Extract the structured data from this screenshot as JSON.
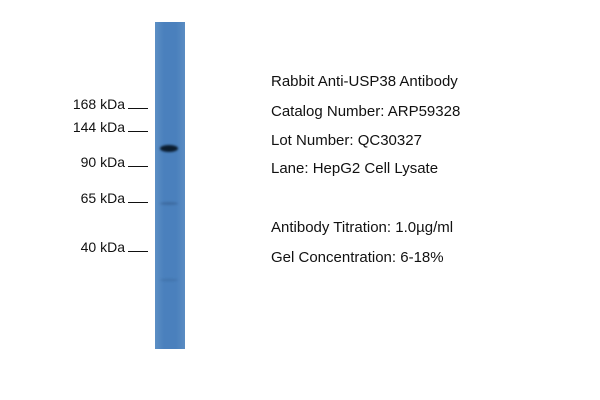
{
  "markers": [
    {
      "label": "168 kDa"
    },
    {
      "label": "144 kDa"
    },
    {
      "label": "90 kDa"
    },
    {
      "label": "65 kDa"
    },
    {
      "label": "40 kDa"
    }
  ],
  "info": {
    "title": "Rabbit Anti-USP38 Antibody",
    "catalog": "Catalog Number: ARP59328",
    "lot": "Lot Number: QC30327",
    "lane": "Lane: HepG2 Cell Lysate",
    "titration": "Antibody Titration: 1.0µg/ml",
    "gel": "Gel Concentration: 6-18%"
  },
  "colors": {
    "lane": "#4a80bd",
    "band": "#0b1c2e"
  }
}
